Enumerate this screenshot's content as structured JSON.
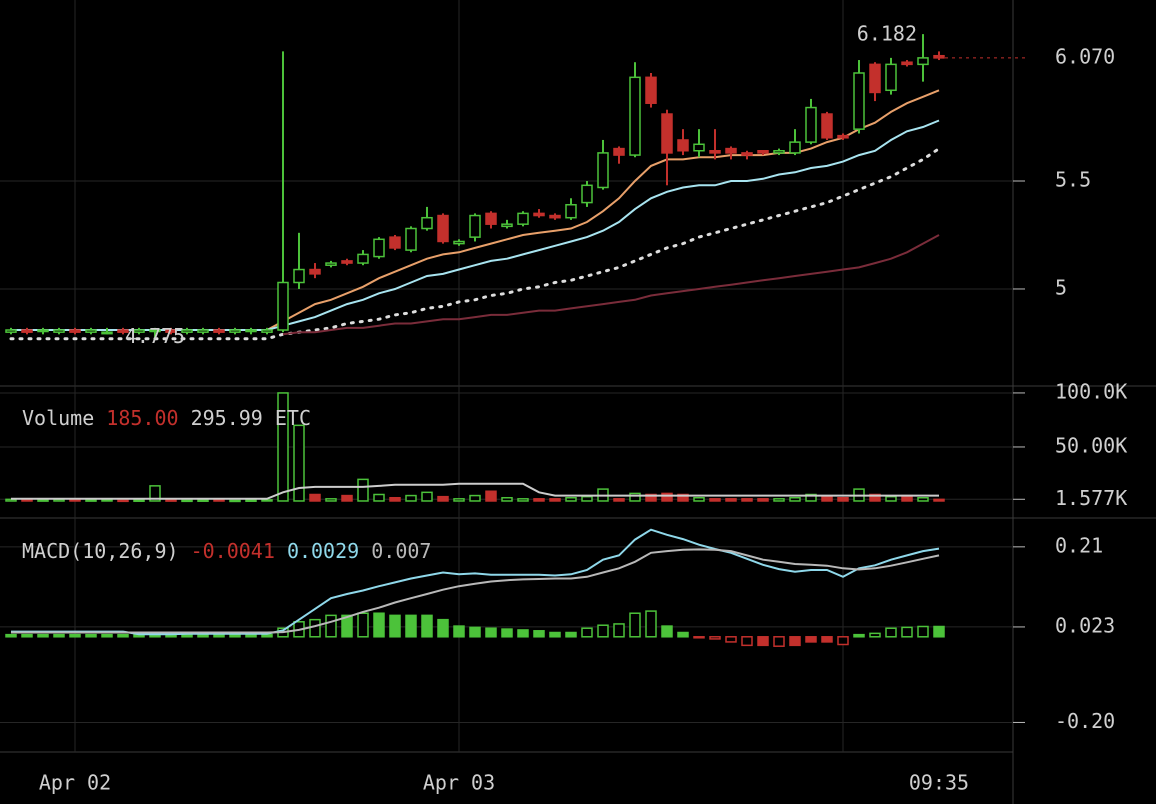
{
  "chart_data": [
    {
      "type": "candlestick",
      "up_color": "#4cc23a",
      "down_color": "#c3302c",
      "ylim": [
        4.648,
        6.338
      ],
      "yticks": [
        5,
        5.5
      ],
      "grid": true,
      "open": [
        4.8,
        4.81,
        4.81,
        4.8,
        4.81,
        4.8,
        4.8,
        4.81,
        4.8,
        4.81,
        4.81,
        4.8,
        4.8,
        4.81,
        4.8,
        4.81,
        4.8,
        4.81,
        5.03,
        5.09,
        5.11,
        5.13,
        5.12,
        5.15,
        5.24,
        5.18,
        5.28,
        5.34,
        5.21,
        5.24,
        5.35,
        5.29,
        5.3,
        5.35,
        5.34,
        5.33,
        5.4,
        5.47,
        5.65,
        5.62,
        5.98,
        5.81,
        5.69,
        5.64,
        5.64,
        5.65,
        5.63,
        5.64,
        5.63,
        5.63,
        5.68,
        5.81,
        5.71,
        5.74,
        6.04,
        5.92,
        6.05,
        6.04,
        6.08
      ],
      "high": [
        4.82,
        4.82,
        4.82,
        4.82,
        4.82,
        4.82,
        4.82,
        4.82,
        4.82,
        4.82,
        4.82,
        4.82,
        4.82,
        4.82,
        4.82,
        4.82,
        4.82,
        6.1,
        5.26,
        5.12,
        5.13,
        5.14,
        5.18,
        5.24,
        5.25,
        5.29,
        5.38,
        5.35,
        5.23,
        5.35,
        5.36,
        5.32,
        5.36,
        5.37,
        5.35,
        5.42,
        5.5,
        5.69,
        5.66,
        6.05,
        6.0,
        5.83,
        5.74,
        5.74,
        5.74,
        5.66,
        5.64,
        5.64,
        5.65,
        5.74,
        5.88,
        5.82,
        5.72,
        6.06,
        6.05,
        6.07,
        6.06,
        6.18,
        6.1
      ],
      "low": [
        4.79,
        4.79,
        4.79,
        4.79,
        4.79,
        4.79,
        4.79,
        4.79,
        4.79,
        4.775,
        4.79,
        4.79,
        4.79,
        4.79,
        4.79,
        4.79,
        4.79,
        4.8,
        5.0,
        5.05,
        5.1,
        5.11,
        5.11,
        5.14,
        5.18,
        5.17,
        5.27,
        5.21,
        5.2,
        5.22,
        5.28,
        5.28,
        5.29,
        5.33,
        5.32,
        5.32,
        5.38,
        5.46,
        5.58,
        5.61,
        5.84,
        5.48,
        5.62,
        5.61,
        5.6,
        5.6,
        5.6,
        5.62,
        5.62,
        5.62,
        5.67,
        5.69,
        5.69,
        5.72,
        5.87,
        5.9,
        6.03,
        5.96,
        6.06
      ],
      "close": [
        4.81,
        4.8,
        4.81,
        4.81,
        4.8,
        4.81,
        4.8,
        4.8,
        4.81,
        4.81,
        4.8,
        4.81,
        4.81,
        4.8,
        4.81,
        4.81,
        4.81,
        5.03,
        5.09,
        5.07,
        5.12,
        5.12,
        5.16,
        5.23,
        5.19,
        5.28,
        5.33,
        5.22,
        5.22,
        5.34,
        5.3,
        5.3,
        5.35,
        5.34,
        5.33,
        5.39,
        5.48,
        5.63,
        5.62,
        5.98,
        5.86,
        5.63,
        5.64,
        5.67,
        5.63,
        5.63,
        5.62,
        5.63,
        5.64,
        5.68,
        5.84,
        5.7,
        5.7,
        6.0,
        5.91,
        6.04,
        6.04,
        6.07,
        6.07
      ],
      "series": [
        {
          "color": "#e8a06a",
          "values": [
            4.81,
            4.81,
            4.81,
            4.81,
            4.81,
            4.81,
            4.81,
            4.81,
            4.81,
            4.81,
            4.81,
            4.81,
            4.81,
            4.81,
            4.81,
            4.81,
            4.81,
            4.85,
            4.89,
            4.93,
            4.95,
            4.98,
            5.01,
            5.05,
            5.08,
            5.11,
            5.14,
            5.16,
            5.17,
            5.19,
            5.21,
            5.23,
            5.25,
            5.26,
            5.27,
            5.28,
            5.31,
            5.36,
            5.42,
            5.5,
            5.57,
            5.6,
            5.6,
            5.61,
            5.61,
            5.62,
            5.62,
            5.62,
            5.63,
            5.63,
            5.65,
            5.68,
            5.7,
            5.74,
            5.77,
            5.82,
            5.86,
            5.89,
            5.92
          ]
        },
        {
          "color": "#a8e4f0",
          "values": [
            4.81,
            4.81,
            4.81,
            4.81,
            4.81,
            4.81,
            4.81,
            4.81,
            4.81,
            4.81,
            4.81,
            4.81,
            4.81,
            4.81,
            4.81,
            4.81,
            4.81,
            4.83,
            4.85,
            4.87,
            4.9,
            4.93,
            4.95,
            4.98,
            5.0,
            5.03,
            5.06,
            5.07,
            5.09,
            5.11,
            5.13,
            5.14,
            5.16,
            5.18,
            5.2,
            5.22,
            5.24,
            5.27,
            5.31,
            5.37,
            5.42,
            5.45,
            5.47,
            5.48,
            5.48,
            5.5,
            5.5,
            5.51,
            5.53,
            5.54,
            5.56,
            5.57,
            5.59,
            5.62,
            5.64,
            5.69,
            5.73,
            5.75,
            5.78
          ]
        },
        {
          "color": "#dddddd",
          "dash": true,
          "values": [
            4.77,
            4.77,
            4.77,
            4.77,
            4.77,
            4.77,
            4.77,
            4.77,
            4.77,
            4.77,
            4.77,
            4.77,
            4.77,
            4.77,
            4.77,
            4.77,
            4.77,
            4.79,
            4.8,
            4.81,
            4.82,
            4.84,
            4.85,
            4.86,
            4.88,
            4.89,
            4.91,
            4.92,
            4.94,
            4.95,
            4.97,
            4.98,
            5.0,
            5.01,
            5.03,
            5.04,
            5.06,
            5.08,
            5.1,
            5.13,
            5.16,
            5.19,
            5.21,
            5.24,
            5.26,
            5.28,
            5.3,
            5.32,
            5.34,
            5.36,
            5.38,
            5.4,
            5.43,
            5.46,
            5.49,
            5.52,
            5.56,
            5.6,
            5.65
          ]
        },
        {
          "color": "#7a2c3a",
          "values": [
            null,
            null,
            null,
            null,
            null,
            null,
            null,
            null,
            null,
            null,
            null,
            null,
            null,
            null,
            null,
            null,
            null,
            4.79,
            4.8,
            4.8,
            4.81,
            4.82,
            4.82,
            4.83,
            4.84,
            4.84,
            4.85,
            4.86,
            4.86,
            4.87,
            4.88,
            4.88,
            4.89,
            4.9,
            4.9,
            4.91,
            4.92,
            4.93,
            4.94,
            4.95,
            4.97,
            4.98,
            4.99,
            5.0,
            5.01,
            5.02,
            5.03,
            5.04,
            5.05,
            5.06,
            5.07,
            5.08,
            5.09,
            5.1,
            5.12,
            5.14,
            5.17,
            5.21,
            5.25
          ]
        }
      ],
      "last_price": {
        "value": 6.07,
        "label": "6.070"
      },
      "high_label": 6.182,
      "low_label": 4.775
    },
    {
      "type": "bar",
      "title": "Volume",
      "legend_values": [
        "185.00",
        "295.99"
      ],
      "unit": "ETC",
      "ylim": [
        -10200,
        105500
      ],
      "yticks": [
        {
          "value": 100000,
          "label": "100.0K"
        },
        {
          "value": 50000,
          "label": "50.00K"
        },
        {
          "value": 1577,
          "label": "1.577K"
        }
      ],
      "grid": true,
      "series": [
        {
          "type": "bar",
          "values": [
            1500,
            1200,
            800,
            1500,
            1000,
            800,
            1000,
            600,
            700,
            14000,
            800,
            600,
            700,
            900,
            500,
            700,
            1000,
            100000,
            70000,
            6000,
            2000,
            5000,
            20000,
            6000,
            3000,
            5000,
            8000,
            4000,
            2000,
            5000,
            9000,
            3000,
            2000,
            2000,
            2000,
            3000,
            4000,
            11000,
            2000,
            7000,
            6000,
            7000,
            6000,
            3000,
            2000,
            2000,
            2000,
            2000,
            2000,
            3000,
            6000,
            4000,
            3000,
            11000,
            6000,
            4000,
            5000,
            3000,
            1500
          ]
        },
        {
          "type": "line",
          "color": "#cccccc",
          "values": [
            2000,
            2000,
            2000,
            2000,
            2000,
            2000,
            2000,
            2000,
            2000,
            2000,
            2000,
            2000,
            2000,
            2000,
            2000,
            2000,
            2000,
            8000,
            12000,
            13000,
            13000,
            13000,
            13000,
            14000,
            15000,
            15000,
            15000,
            15000,
            16000,
            16000,
            16000,
            16000,
            16000,
            8000,
            5000,
            5000,
            5000,
            5000,
            5000,
            5000,
            5000,
            5000,
            5000,
            5000,
            5000,
            5000,
            5000,
            5000,
            5000,
            5000,
            5000,
            5000,
            5000,
            5000,
            5000,
            5000,
            5000,
            5000,
            5000
          ]
        }
      ]
    },
    {
      "type": "line",
      "title": "MACD(10,26,9)",
      "legend_values": [
        "-0.0041",
        "0.0029",
        "0.007"
      ],
      "ylim": [
        -0.269,
        0.268
      ],
      "yticks": [
        0.21,
        0.023,
        {
          "value": -0.2,
          "label": "-0.20"
        }
      ],
      "grid": true,
      "up_color": "#4cc23a",
      "down_color": "#c3302c",
      "categories": [
        null,
        null,
        null,
        null,
        "Apr 02",
        null,
        null,
        null,
        null,
        null,
        null,
        null,
        null,
        null,
        null,
        null,
        null,
        null,
        null,
        null,
        null,
        null,
        null,
        null,
        null,
        null,
        null,
        null,
        "Apr 03",
        null,
        null,
        null,
        null,
        null,
        null,
        null,
        null,
        null,
        null,
        null,
        null,
        null,
        null,
        null,
        null,
        null,
        null,
        null,
        null,
        null,
        null,
        null,
        null,
        null,
        null,
        null,
        null,
        null,
        "09:35"
      ],
      "series": [
        {
          "type": "bar",
          "values": [
            0.005,
            0.005,
            0.005,
            0.005,
            0.005,
            0.005,
            0.005,
            0.005,
            0.005,
            0.005,
            0.005,
            0.005,
            0.005,
            0.005,
            0.005,
            0.005,
            0.005,
            0.02,
            0.035,
            0.04,
            0.05,
            0.05,
            0.055,
            0.055,
            0.05,
            0.05,
            0.05,
            0.04,
            0.025,
            0.022,
            0.02,
            0.018,
            0.016,
            0.014,
            0.01,
            0.01,
            0.02,
            0.027,
            0.03,
            0.055,
            0.06,
            0.025,
            0.01,
            -0.002,
            -0.005,
            -0.012,
            -0.02,
            -0.02,
            -0.022,
            -0.02,
            -0.012,
            -0.012,
            -0.018,
            0.005,
            0.008,
            0.02,
            0.022,
            0.024,
            0.024
          ]
        },
        {
          "type": "line",
          "color": "#8fd8ea",
          "values": [
            0.012,
            0.012,
            0.012,
            0.012,
            0.012,
            0.012,
            0.012,
            0.012,
            0.006,
            0.006,
            0.006,
            0.007,
            0.007,
            0.007,
            0.007,
            0.007,
            0.007,
            0.015,
            0.04,
            0.065,
            0.09,
            0.1,
            0.108,
            0.118,
            0.127,
            0.136,
            0.143,
            0.15,
            0.146,
            0.148,
            0.145,
            0.145,
            0.145,
            0.145,
            0.143,
            0.146,
            0.156,
            0.18,
            0.19,
            0.227,
            0.25,
            0.238,
            0.228,
            0.215,
            0.205,
            0.196,
            0.182,
            0.168,
            0.158,
            0.152,
            0.156,
            0.156,
            0.14,
            0.16,
            0.167,
            0.18,
            0.19,
            0.2,
            0.206
          ]
        },
        {
          "type": "line",
          "color": "#b8b8b8",
          "values": [
            0.01,
            0.01,
            0.01,
            0.01,
            0.01,
            0.01,
            0.01,
            0.01,
            0.01,
            0.01,
            0.01,
            0.01,
            0.01,
            0.01,
            0.01,
            0.01,
            0.01,
            0.011,
            0.016,
            0.025,
            0.035,
            0.046,
            0.058,
            0.068,
            0.08,
            0.09,
            0.1,
            0.11,
            0.118,
            0.124,
            0.129,
            0.132,
            0.134,
            0.135,
            0.136,
            0.136,
            0.14,
            0.15,
            0.16,
            0.175,
            0.196,
            0.2,
            0.203,
            0.204,
            0.203,
            0.2,
            0.19,
            0.18,
            0.175,
            0.17,
            0.168,
            0.166,
            0.16,
            0.157,
            0.16,
            0.166,
            0.174,
            0.182,
            0.19
          ]
        }
      ]
    }
  ]
}
